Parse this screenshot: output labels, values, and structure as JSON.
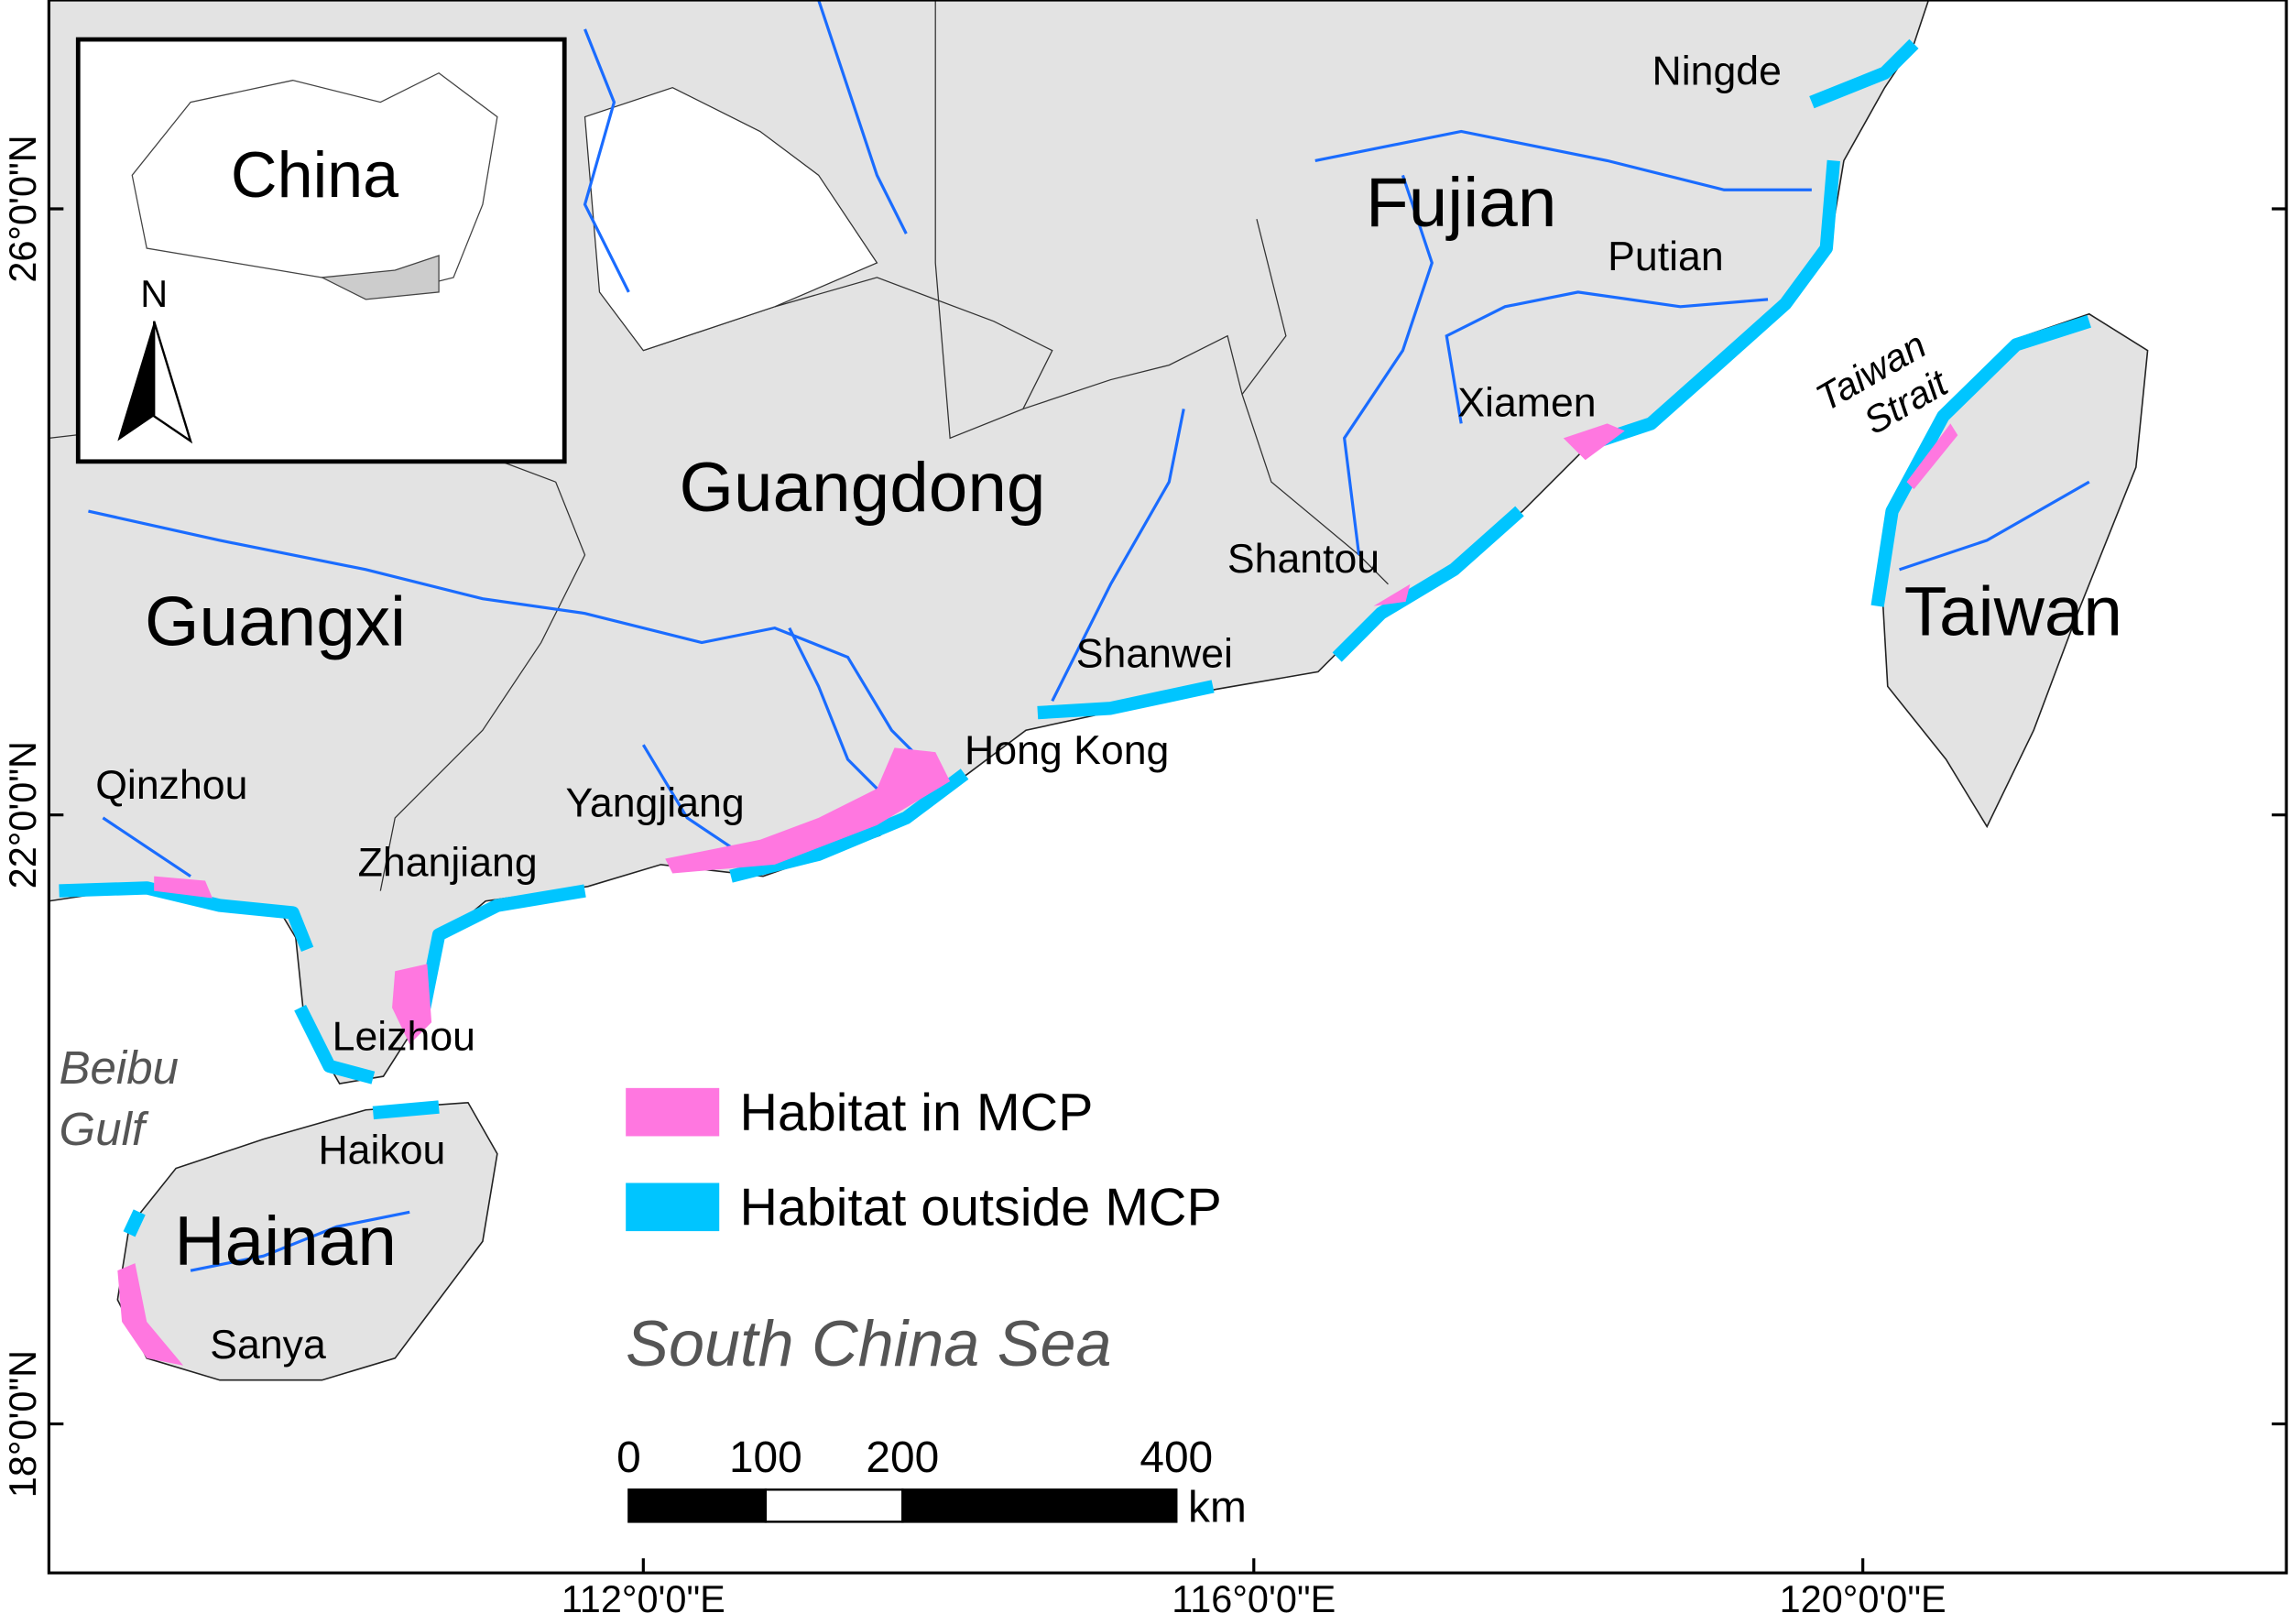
{
  "map": {
    "inset": {
      "title": "China",
      "north_label": "N"
    },
    "regions": [
      "Fujian",
      "Guangdong",
      "Guangxi",
      "Taiwan",
      "Hainan"
    ],
    "cities": [
      "Ningde",
      "Putian",
      "Xiamen",
      "Shantou",
      "Shanwei",
      "Hong Kong",
      "Yangjiang",
      "Qinzhou",
      "Zhanjiang",
      "Leizhou",
      "Haikou",
      "Sanya"
    ],
    "water_bodies": [
      {
        "lines": [
          "Taiwan",
          "Strait"
        ]
      },
      {
        "lines": [
          "Beibu",
          "Gulf"
        ]
      },
      {
        "lines": [
          "South China Sea"
        ]
      }
    ],
    "legend": [
      {
        "label": "Habitat in MCP",
        "color": "#ff77e0"
      },
      {
        "label": "Habitat outside MCP",
        "color": "#00c5ff"
      }
    ],
    "scale_bar": {
      "ticks": [
        0,
        100,
        200,
        400
      ],
      "unit": "km"
    },
    "latitude_labels": [
      "26°0'0\"N",
      "22°0'0\"N",
      "18°0'0\"N"
    ],
    "longitude_labels": [
      "112°0'0\"E",
      "116°0'0\"E",
      "120°0'0\"E"
    ]
  }
}
